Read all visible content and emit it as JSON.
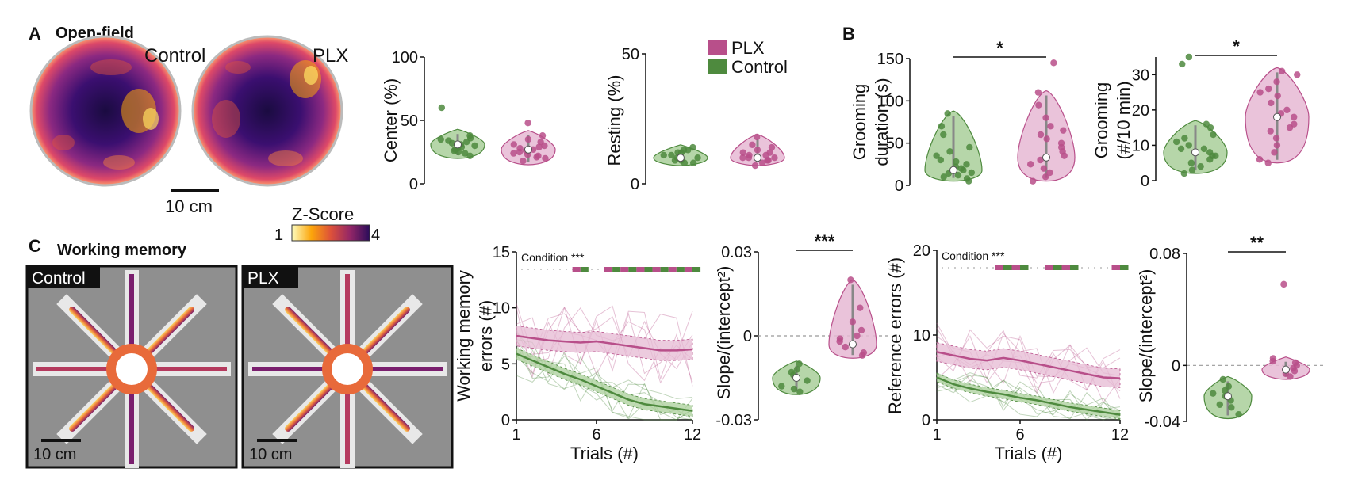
{
  "panels": {
    "A": {
      "letter": "A",
      "title": "Open-field"
    },
    "B": {
      "letter": "B"
    },
    "C": {
      "letter": "C",
      "title": "Working memory"
    }
  },
  "heatmaps": {
    "control_label": "Control",
    "plx_label": "PLX",
    "scalebar_label": "10 cm",
    "colorbar_title": "Z-Score",
    "colorbar_min": "1",
    "colorbar_max": "4"
  },
  "maze": {
    "control_label": "Control",
    "plx_label": "PLX",
    "scalebar_label": "10 cm"
  },
  "legend": {
    "entries": [
      {
        "name": "PLX",
        "color": "#b84f8a"
      },
      {
        "name": "Control",
        "color": "#4e8a3e"
      }
    ]
  },
  "colors": {
    "plx": "#b84f8a",
    "plx_light": "#e6b9d3",
    "control": "#4e8a3e",
    "control_light": "#a9cf9a"
  },
  "chart_data": [
    {
      "id": "center",
      "type": "violin",
      "ylabel": "Center (%)",
      "yticks": [
        "0",
        "50",
        "100"
      ],
      "ylim": [
        0,
        100
      ],
      "groups": [
        {
          "name": "Control",
          "median": 31,
          "min": 20,
          "max": 43,
          "points": [
            33,
            28,
            30,
            25,
            35,
            31,
            29,
            26,
            38,
            32,
            27,
            34,
            30,
            24,
            36,
            22,
            60
          ]
        },
        {
          "name": "PLX",
          "median": 27,
          "min": 15,
          "max": 42,
          "points": [
            30,
            25,
            28,
            22,
            33,
            27,
            24,
            35,
            29,
            21,
            31,
            26,
            20,
            38,
            23,
            18,
            48
          ]
        }
      ]
    },
    {
      "id": "resting",
      "type": "violin",
      "ylabel": "Resting (%)",
      "yticks": [
        "0",
        "50"
      ],
      "ylim": [
        0,
        50
      ],
      "groups": [
        {
          "name": "Control",
          "median": 10,
          "min": 7,
          "max": 15,
          "points": [
            10,
            12,
            9,
            11,
            13,
            8,
            10,
            14,
            9,
            12,
            11,
            10,
            13,
            8
          ]
        },
        {
          "name": "PLX",
          "median": 10,
          "min": 7,
          "max": 19,
          "points": [
            10,
            11,
            9,
            12,
            8,
            10,
            13,
            9,
            11,
            12,
            7,
            10,
            14,
            18,
            15
          ]
        }
      ]
    },
    {
      "id": "grooming_duration",
      "type": "violin",
      "ylabel_lines": [
        "Grooming",
        "duration (s)"
      ],
      "yticks": [
        "0",
        "50",
        "100",
        "150"
      ],
      "ylim": [
        0,
        150
      ],
      "significance": "*",
      "groups": [
        {
          "name": "Control",
          "median": 18,
          "min": 5,
          "max": 88,
          "points": [
            10,
            15,
            20,
            8,
            25,
            35,
            12,
            45,
            60,
            18,
            30,
            5,
            70,
            85,
            22,
            14,
            40,
            28
          ]
        },
        {
          "name": "PLX",
          "median": 33,
          "min": 5,
          "max": 112,
          "points": [
            20,
            35,
            50,
            10,
            60,
            80,
            25,
            45,
            95,
            30,
            70,
            15,
            55,
            110,
            40,
            65,
            5,
            145
          ]
        }
      ]
    },
    {
      "id": "grooming_rate",
      "type": "violin",
      "ylabel_lines": [
        "Grooming",
        "(#/10 min)"
      ],
      "yticks": [
        "0",
        "10",
        "20",
        "30"
      ],
      "ylim": [
        0,
        35
      ],
      "significance": "*",
      "groups": [
        {
          "name": "Control",
          "median": 8,
          "min": 2,
          "max": 17,
          "points": [
            5,
            8,
            10,
            3,
            12,
            7,
            9,
            15,
            6,
            11,
            4,
            13,
            2,
            16,
            9,
            7,
            33,
            35
          ]
        },
        {
          "name": "PLX",
          "median": 18,
          "min": 5,
          "max": 32,
          "points": [
            10,
            15,
            20,
            25,
            8,
            30,
            18,
            12,
            22,
            28,
            6,
            16,
            26,
            14,
            31,
            19,
            24,
            5
          ]
        }
      ]
    },
    {
      "id": "working_memory_errors",
      "type": "line",
      "ylabel_lines": [
        "Working memory",
        "errors (#)"
      ],
      "xlabel": "Trials (#)",
      "xticks": [
        "1",
        "6",
        "12"
      ],
      "yticks": [
        "0",
        "5",
        "10",
        "15"
      ],
      "xlim": [
        1,
        12
      ],
      "ylim": [
        0,
        15
      ],
      "annotation": "Condition ***",
      "x": [
        1,
        2,
        3,
        4,
        5,
        6,
        7,
        8,
        9,
        10,
        11,
        12
      ],
      "series": [
        {
          "name": "PLX",
          "mean": [
            7.5,
            7.3,
            7.1,
            7.0,
            6.9,
            7.0,
            6.8,
            6.6,
            6.4,
            6.2,
            6.2,
            6.3
          ],
          "sem": 0.9
        },
        {
          "name": "Control",
          "mean": [
            5.9,
            5.3,
            4.7,
            4.1,
            3.6,
            3.0,
            2.4,
            1.8,
            1.4,
            1.2,
            1.0,
            0.8
          ],
          "sem": 0.5
        }
      ],
      "sig_trials": [
        5,
        7,
        8,
        9,
        10,
        11,
        12
      ]
    },
    {
      "id": "wm_slope",
      "type": "violin",
      "ylabel": "Slope/(intercept²)",
      "yticks": [
        "-0.03",
        "0",
        "0.03"
      ],
      "ylim": [
        -0.03,
        0.03
      ],
      "significance": "***",
      "groups": [
        {
          "name": "Control",
          "median": -0.015,
          "min": -0.021,
          "max": -0.009,
          "points": [
            -0.012,
            -0.015,
            -0.018,
            -0.01,
            -0.02,
            -0.014,
            -0.016,
            -0.013,
            -0.019
          ]
        },
        {
          "name": "PLX",
          "median": -0.003,
          "min": -0.008,
          "max": 0.02,
          "points": [
            -0.004,
            0.002,
            -0.006,
            0.0,
            -0.002,
            0.005,
            -0.007,
            0.01,
            -0.001,
            0.02
          ]
        }
      ]
    },
    {
      "id": "reference_errors",
      "type": "line",
      "ylabel_lines": [
        "Reference errors (#)"
      ],
      "xlabel": "Trials (#)",
      "xticks": [
        "1",
        "6",
        "12"
      ],
      "yticks": [
        "0",
        "10",
        "20"
      ],
      "xlim": [
        1,
        12
      ],
      "ylim": [
        0,
        20
      ],
      "annotation": "Condition ***",
      "x": [
        1,
        2,
        3,
        4,
        5,
        6,
        7,
        8,
        9,
        10,
        11,
        12
      ],
      "series": [
        {
          "name": "PLX",
          "mean": [
            8.0,
            7.6,
            7.2,
            7.0,
            7.3,
            7.0,
            6.6,
            6.2,
            5.8,
            5.4,
            5.0,
            4.9
          ],
          "sem": 1.1
        },
        {
          "name": "Control",
          "mean": [
            5.0,
            4.2,
            3.7,
            3.3,
            3.0,
            2.6,
            2.3,
            1.9,
            1.5,
            1.2,
            0.9,
            0.6
          ],
          "sem": 0.5
        }
      ],
      "sig_trials": [
        5,
        6,
        8,
        9,
        12
      ]
    },
    {
      "id": "ref_slope",
      "type": "violin",
      "ylabel": "Slope/(intercept²)",
      "yticks": [
        "-0.04",
        "0",
        "0.08"
      ],
      "ylim": [
        -0.04,
        0.08
      ],
      "significance": "**",
      "groups": [
        {
          "name": "Control",
          "median": -0.022,
          "min": -0.038,
          "max": -0.008,
          "points": [
            -0.015,
            -0.02,
            -0.025,
            -0.03,
            -0.018,
            -0.035,
            -0.01,
            -0.022,
            -0.028
          ]
        },
        {
          "name": "PLX",
          "median": -0.003,
          "min": -0.01,
          "max": 0.006,
          "points": [
            -0.004,
            0.0,
            -0.008,
            0.003,
            -0.006,
            0.002,
            -0.002,
            0.005,
            0.058
          ]
        }
      ]
    }
  ]
}
